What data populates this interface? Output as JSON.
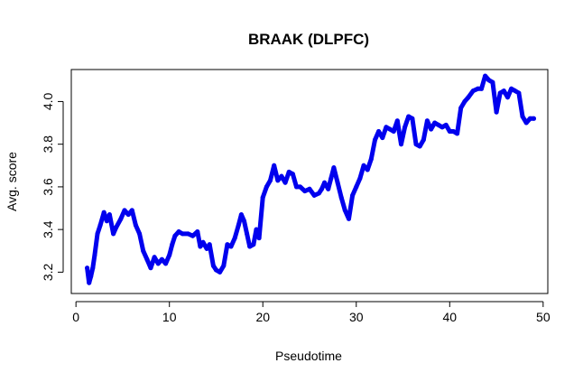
{
  "chart_data": {
    "type": "line",
    "title": "BRAAK (DLPFC)",
    "xlabel": "Pseudotime",
    "ylabel": "Avg. score",
    "xlim": [
      -0.5,
      50.5
    ],
    "ylim": [
      3.1,
      4.15
    ],
    "xticks": [
      0,
      10,
      20,
      30,
      40,
      50
    ],
    "yticks": [
      3.2,
      3.4,
      3.6,
      3.8,
      4.0
    ],
    "xtick_labels": [
      "0",
      "10",
      "20",
      "30",
      "40",
      "50"
    ],
    "ytick_labels": [
      "3.2",
      "3.4",
      "3.6",
      "3.8",
      "4.0"
    ],
    "grid": false,
    "series": [
      {
        "color": "#0000ee",
        "x": [
          1.2,
          1.4,
          1.6,
          1.8,
          2.0,
          2.3,
          2.6,
          3.0,
          3.3,
          3.6,
          4.0,
          4.3,
          4.8,
          5.2,
          5.6,
          6.0,
          6.4,
          6.8,
          7.2,
          7.6,
          8.0,
          8.4,
          8.8,
          9.2,
          9.6,
          10.0,
          10.3,
          10.6,
          11.0,
          11.4,
          12.0,
          12.5,
          13.0,
          13.3,
          13.6,
          14.0,
          14.3,
          14.7,
          15.0,
          15.4,
          15.8,
          16.2,
          16.6,
          17.0,
          17.4,
          17.7,
          18.0,
          18.3,
          18.6,
          19.0,
          19.3,
          19.6,
          20.0,
          20.4,
          20.8,
          21.2,
          21.6,
          22.0,
          22.4,
          22.8,
          23.2,
          23.6,
          24.0,
          24.5,
          25.0,
          25.5,
          26.0,
          26.3,
          26.6,
          27.0,
          27.3,
          27.6,
          28.0,
          28.4,
          28.8,
          29.2,
          29.6,
          30.0,
          30.4,
          30.8,
          31.2,
          31.6,
          32.0,
          32.4,
          32.8,
          33.2,
          33.6,
          34.0,
          34.4,
          34.8,
          35.2,
          35.6,
          36.0,
          36.4,
          36.8,
          37.2,
          37.6,
          38.0,
          38.4,
          38.8,
          39.2,
          39.6,
          40.0,
          40.4,
          40.8,
          41.2,
          41.6,
          42.0,
          42.5,
          43.0,
          43.4,
          43.8,
          44.2,
          44.6,
          45.0,
          45.4,
          45.8,
          46.2,
          46.6,
          47.0,
          47.4,
          47.8,
          48.2,
          48.6,
          49.0
        ],
        "y": [
          3.22,
          3.15,
          3.18,
          3.22,
          3.28,
          3.38,
          3.42,
          3.48,
          3.44,
          3.47,
          3.38,
          3.41,
          3.45,
          3.49,
          3.47,
          3.49,
          3.42,
          3.38,
          3.3,
          3.26,
          3.22,
          3.27,
          3.24,
          3.26,
          3.24,
          3.28,
          3.33,
          3.37,
          3.39,
          3.38,
          3.38,
          3.37,
          3.39,
          3.32,
          3.34,
          3.31,
          3.33,
          3.23,
          3.21,
          3.2,
          3.23,
          3.33,
          3.32,
          3.36,
          3.42,
          3.47,
          3.44,
          3.38,
          3.32,
          3.33,
          3.4,
          3.36,
          3.55,
          3.6,
          3.63,
          3.7,
          3.63,
          3.65,
          3.62,
          3.67,
          3.66,
          3.6,
          3.6,
          3.58,
          3.59,
          3.56,
          3.57,
          3.59,
          3.62,
          3.59,
          3.64,
          3.69,
          3.62,
          3.55,
          3.49,
          3.45,
          3.56,
          3.6,
          3.64,
          3.7,
          3.68,
          3.73,
          3.82,
          3.86,
          3.83,
          3.88,
          3.87,
          3.86,
          3.91,
          3.8,
          3.88,
          3.93,
          3.92,
          3.8,
          3.79,
          3.82,
          3.91,
          3.87,
          3.9,
          3.89,
          3.88,
          3.89,
          3.86,
          3.86,
          3.85,
          3.97,
          4.0,
          4.02,
          4.05,
          4.06,
          4.06,
          4.12,
          4.1,
          4.09,
          3.95,
          4.04,
          4.05,
          4.02,
          4.06,
          4.05,
          4.04,
          3.93,
          3.9,
          3.92,
          3.92
        ]
      }
    ]
  }
}
